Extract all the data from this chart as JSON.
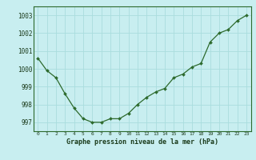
{
  "x": [
    0,
    1,
    2,
    3,
    4,
    5,
    6,
    7,
    8,
    9,
    10,
    11,
    12,
    13,
    14,
    15,
    16,
    17,
    18,
    19,
    20,
    21,
    22,
    23
  ],
  "y": [
    1000.6,
    999.9,
    999.5,
    998.6,
    997.8,
    997.2,
    997.0,
    997.0,
    997.2,
    997.2,
    997.5,
    998.0,
    998.4,
    998.7,
    998.9,
    999.5,
    999.7,
    1000.1,
    1000.3,
    1001.5,
    1002.0,
    1002.2,
    1002.7,
    1003.0
  ],
  "line_color": "#2d6a2d",
  "marker_color": "#2d6a2d",
  "bg_color": "#c8eef0",
  "grid_color": "#aadddd",
  "border_color": "#2d6a2d",
  "xlabel": "Graphe pression niveau de la mer (hPa)",
  "ylim": [
    996.5,
    1003.5
  ],
  "xlim": [
    -0.5,
    23.5
  ],
  "yticks": [
    997,
    998,
    999,
    1000,
    1001,
    1002,
    1003
  ],
  "xticks": [
    0,
    1,
    2,
    3,
    4,
    5,
    6,
    7,
    8,
    9,
    10,
    11,
    12,
    13,
    14,
    15,
    16,
    17,
    18,
    19,
    20,
    21,
    22,
    23
  ],
  "xlabel_fontsize": 6.0,
  "ytick_fontsize": 5.5,
  "xtick_fontsize": 4.5
}
